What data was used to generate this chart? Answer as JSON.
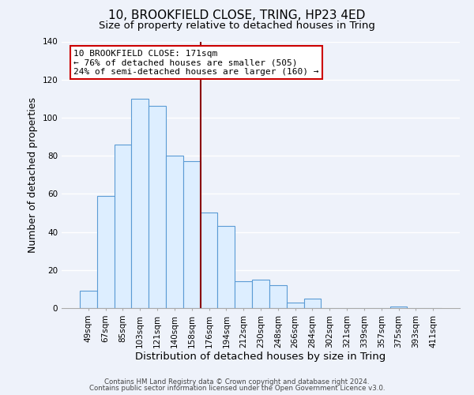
{
  "title": "10, BROOKFIELD CLOSE, TRING, HP23 4ED",
  "subtitle": "Size of property relative to detached houses in Tring",
  "xlabel": "Distribution of detached houses by size in Tring",
  "ylabel": "Number of detached properties",
  "bar_labels": [
    "49sqm",
    "67sqm",
    "85sqm",
    "103sqm",
    "121sqm",
    "140sqm",
    "158sqm",
    "176sqm",
    "194sqm",
    "212sqm",
    "230sqm",
    "248sqm",
    "266sqm",
    "284sqm",
    "302sqm",
    "321sqm",
    "339sqm",
    "357sqm",
    "375sqm",
    "393sqm",
    "411sqm"
  ],
  "bar_values": [
    9,
    59,
    86,
    110,
    106,
    80,
    77,
    50,
    43,
    14,
    15,
    12,
    3,
    5,
    0,
    0,
    0,
    0,
    1,
    0,
    0
  ],
  "bar_color": "#ddeeff",
  "bar_edge_color": "#5b9bd5",
  "vline_color": "#8B0000",
  "annotation_title": "10 BROOKFIELD CLOSE: 171sqm",
  "annotation_line1": "← 76% of detached houses are smaller (505)",
  "annotation_line2": "24% of semi-detached houses are larger (160) →",
  "annotation_box_edge": "#cc0000",
  "footer_line1": "Contains HM Land Registry data © Crown copyright and database right 2024.",
  "footer_line2": "Contains public sector information licensed under the Open Government Licence v3.0.",
  "ylim": [
    0,
    140
  ],
  "background_color": "#eef2fa",
  "plot_background": "#eef2fa",
  "grid_color": "#ffffff",
  "title_fontsize": 11,
  "subtitle_fontsize": 9.5,
  "xlabel_fontsize": 9.5,
  "ylabel_fontsize": 9,
  "tick_fontsize": 7.5,
  "footer_fontsize": 6.2
}
